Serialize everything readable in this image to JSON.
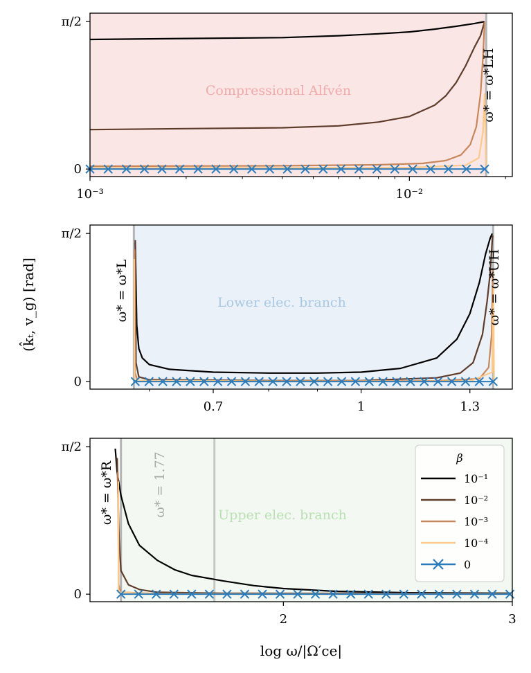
{
  "figure": {
    "ylabel": "(k̂ₜ, v_g) [rad]",
    "xlabel": "log ω/|Ω′ce|"
  },
  "legend": {
    "title": "β",
    "entries": [
      {
        "label": "10⁻¹",
        "color": "#000000",
        "marker": false
      },
      {
        "label": "10⁻²",
        "color": "#5e3c2a",
        "marker": false
      },
      {
        "label": "10⁻³",
        "color": "#c8875a",
        "marker": false
      },
      {
        "label": "10⁻⁴",
        "color": "#fbc98a",
        "marker": false
      },
      {
        "label": "0",
        "color": "#2b7bba",
        "marker": true
      }
    ]
  },
  "chart_data": [
    {
      "type": "line",
      "panel": "top",
      "title": "",
      "xscale": "log",
      "xlim": [
        0.001,
        0.021
      ],
      "ylim": [
        -0.08,
        1.66
      ],
      "xticks": [
        {
          "v": 0.001,
          "label": "10⁻³"
        },
        {
          "v": 0.01,
          "label": "10⁻²"
        }
      ],
      "yticks": [
        {
          "v": 0,
          "label": "0"
        },
        {
          "v": 1.5708,
          "label": "π/2"
        }
      ],
      "region": {
        "label": "Compressional Alfvén",
        "color": "#fbe6e6",
        "label_color": "#f0aaaa",
        "x": [
          0.001,
          0.0174
        ]
      },
      "vlines": [
        {
          "x": 0.0174,
          "label": "ω* = ω*LH",
          "color": "#b4b4b4"
        }
      ],
      "series": [
        {
          "name": "10⁻¹",
          "color": "#000000",
          "points": [
            [
              0.001,
              1.38
            ],
            [
              0.002,
              1.39
            ],
            [
              0.004,
              1.4
            ],
            [
              0.006,
              1.42
            ],
            [
              0.008,
              1.44
            ],
            [
              0.01,
              1.46
            ],
            [
              0.012,
              1.49
            ],
            [
              0.014,
              1.52
            ],
            [
              0.016,
              1.55
            ],
            [
              0.0172,
              1.57
            ]
          ]
        },
        {
          "name": "10⁻²",
          "color": "#5e3c2a",
          "points": [
            [
              0.001,
              0.42
            ],
            [
              0.002,
              0.43
            ],
            [
              0.004,
              0.44
            ],
            [
              0.006,
              0.46
            ],
            [
              0.008,
              0.5
            ],
            [
              0.01,
              0.56
            ],
            [
              0.012,
              0.68
            ],
            [
              0.013,
              0.78
            ],
            [
              0.014,
              0.92
            ],
            [
              0.015,
              1.1
            ],
            [
              0.016,
              1.3
            ],
            [
              0.0167,
              1.42
            ],
            [
              0.0172,
              1.57
            ]
          ]
        },
        {
          "name": "10⁻³",
          "color": "#c8875a",
          "points": [
            [
              0.001,
              0.03
            ],
            [
              0.004,
              0.035
            ],
            [
              0.008,
              0.045
            ],
            [
              0.011,
              0.06
            ],
            [
              0.013,
              0.09
            ],
            [
              0.0145,
              0.15
            ],
            [
              0.0155,
              0.26
            ],
            [
              0.0162,
              0.45
            ],
            [
              0.0167,
              0.8
            ],
            [
              0.017,
              1.2
            ],
            [
              0.0172,
              1.57
            ]
          ]
        },
        {
          "name": "10⁻⁴",
          "color": "#fbc98a",
          "points": [
            [
              0.001,
              0.01
            ],
            [
              0.01,
              0.015
            ],
            [
              0.015,
              0.04
            ],
            [
              0.0165,
              0.12
            ],
            [
              0.017,
              0.4
            ],
            [
              0.0172,
              0.8
            ],
            [
              0.0174,
              0.03
            ]
          ]
        },
        {
          "name": "0",
          "color": "#2b7bba",
          "marker": "x",
          "points": [
            [
              0.001,
              0
            ],
            [
              0.00114,
              0
            ],
            [
              0.0013,
              0
            ],
            [
              0.00148,
              0
            ],
            [
              0.00168,
              0
            ],
            [
              0.00191,
              0
            ],
            [
              0.00218,
              0
            ],
            [
              0.00248,
              0
            ],
            [
              0.00282,
              0
            ],
            [
              0.00321,
              0
            ],
            [
              0.00365,
              0
            ],
            [
              0.00415,
              0
            ],
            [
              0.00472,
              0
            ],
            [
              0.00537,
              0
            ],
            [
              0.00611,
              0
            ],
            [
              0.00695,
              0
            ],
            [
              0.00791,
              0
            ],
            [
              0.009,
              0
            ],
            [
              0.01024,
              0
            ],
            [
              0.01165,
              0
            ],
            [
              0.01325,
              0
            ],
            [
              0.01508,
              0
            ],
            [
              0.0172,
              0
            ]
          ]
        }
      ]
    },
    {
      "type": "line",
      "panel": "middle",
      "title": "",
      "xscale": "log",
      "xlim": [
        0.52,
        1.44
      ],
      "ylim": [
        -0.08,
        1.66
      ],
      "xticks": [
        {
          "v": 0.7,
          "label": "0.7"
        },
        {
          "v": 1.0,
          "label": "1"
        },
        {
          "v": 1.3,
          "label": "1.3"
        }
      ],
      "yticks": [
        {
          "v": 0,
          "label": "0"
        },
        {
          "v": 1.5708,
          "label": "π/2"
        }
      ],
      "region": {
        "label": "Lower elec. branch",
        "color": "#ebf1f9",
        "label_color": "#a9c9e2",
        "x": [
          0.578,
          1.375
        ]
      },
      "vlines": [
        {
          "x": 0.578,
          "label": "ω* = ω*L",
          "color": "#b4b4b4"
        },
        {
          "x": 1.375,
          "label": "ω* = ω*UH",
          "color": "#b4b4b4"
        }
      ],
      "series": [
        {
          "name": "10⁻¹",
          "color": "#000000",
          "points": [
            [
              0.58,
              1.48
            ],
            [
              0.582,
              0.6
            ],
            [
              0.585,
              0.35
            ],
            [
              0.59,
              0.25
            ],
            [
              0.6,
              0.18
            ],
            [
              0.63,
              0.13
            ],
            [
              0.7,
              0.1
            ],
            [
              0.8,
              0.09
            ],
            [
              0.9,
              0.09
            ],
            [
              1.0,
              0.1
            ],
            [
              1.1,
              0.14
            ],
            [
              1.2,
              0.25
            ],
            [
              1.26,
              0.45
            ],
            [
              1.3,
              0.72
            ],
            [
              1.33,
              1.05
            ],
            [
              1.35,
              1.35
            ],
            [
              1.365,
              1.52
            ],
            [
              1.372,
              1.57
            ]
          ]
        },
        {
          "name": "10⁻²",
          "color": "#5e3c2a",
          "points": [
            [
              0.58,
              1.5
            ],
            [
              0.581,
              0.2
            ],
            [
              0.585,
              0.05
            ],
            [
              0.6,
              0.02
            ],
            [
              0.8,
              0.01
            ],
            [
              1.0,
              0.01
            ],
            [
              1.2,
              0.04
            ],
            [
              1.27,
              0.09
            ],
            [
              1.31,
              0.2
            ],
            [
              1.34,
              0.5
            ],
            [
              1.355,
              0.85
            ],
            [
              1.365,
              1.15
            ],
            [
              1.373,
              1.55
            ]
          ]
        },
        {
          "name": "10⁻³",
          "color": "#c8875a",
          "points": [
            [
              0.579,
              1.4
            ],
            [
              0.5795,
              0.1
            ],
            [
              0.583,
              0.01
            ],
            [
              0.8,
              0.005
            ],
            [
              1.2,
              0.008
            ],
            [
              1.33,
              0.03
            ],
            [
              1.36,
              0.15
            ],
            [
              1.37,
              0.5
            ],
            [
              1.374,
              1.2
            ]
          ]
        },
        {
          "name": "10⁻⁴",
          "color": "#fbc98a",
          "points": [
            [
              0.5785,
              1.3
            ],
            [
              0.579,
              0.01
            ],
            [
              0.8,
              0.002
            ],
            [
              1.3,
              0.004
            ],
            [
              1.372,
              0.1
            ],
            [
              1.376,
              1.0
            ],
            [
              1.378,
              0.02
            ]
          ]
        },
        {
          "name": "0",
          "color": "#2b7bba",
          "marker": "x",
          "points": [
            [
              0.58,
              0
            ],
            [
              0.5996,
              0
            ],
            [
              0.6198,
              0
            ],
            [
              0.6407,
              0
            ],
            [
              0.6623,
              0
            ],
            [
              0.6847,
              0
            ],
            [
              0.7078,
              0
            ],
            [
              0.7317,
              0
            ],
            [
              0.7564,
              0
            ],
            [
              0.7819,
              0
            ],
            [
              0.8083,
              0
            ],
            [
              0.8356,
              0
            ],
            [
              0.8638,
              0
            ],
            [
              0.8929,
              0
            ],
            [
              0.923,
              0
            ],
            [
              0.9542,
              0
            ],
            [
              0.9864,
              0
            ],
            [
              1.0197,
              0
            ],
            [
              1.0541,
              0
            ],
            [
              1.0897,
              0
            ],
            [
              1.1264,
              0
            ],
            [
              1.1644,
              0
            ],
            [
              1.2037,
              0
            ],
            [
              1.2443,
              0
            ],
            [
              1.2864,
              0
            ],
            [
              1.3298,
              0
            ],
            [
              1.375,
              0
            ]
          ]
        }
      ]
    },
    {
      "type": "line",
      "panel": "bottom",
      "title": "",
      "xscale": "log",
      "xlim": [
        1.42,
        3.0
      ],
      "ylim": [
        -0.08,
        1.66
      ],
      "xticks": [
        {
          "v": 2,
          "label": "2"
        },
        {
          "v": 3,
          "label": "3"
        }
      ],
      "yticks": [
        {
          "v": 0,
          "label": "0"
        },
        {
          "v": 1.5708,
          "label": "π/2"
        }
      ],
      "region": {
        "label": "Upper elec. branch",
        "color": "#f3f9f2",
        "label_color": "#b9e0b3",
        "x": [
          1.5,
          3.0
        ]
      },
      "vlines": [
        {
          "x": 1.5,
          "label": "ω* = ω*R",
          "color": "#b4b4b4"
        },
        {
          "x": 1.77,
          "label": "ω* = 1.77",
          "color": "#c6c6c6"
        }
      ],
      "series": [
        {
          "name": "10⁻¹",
          "color": "#000000",
          "points": [
            [
              1.485,
              1.55
            ],
            [
              1.49,
              1.3
            ],
            [
              1.5,
              1.05
            ],
            [
              1.52,
              0.75
            ],
            [
              1.55,
              0.52
            ],
            [
              1.6,
              0.36
            ],
            [
              1.65,
              0.26
            ],
            [
              1.7,
              0.2
            ],
            [
              1.8,
              0.14
            ],
            [
              1.9,
              0.09
            ],
            [
              2.0,
              0.06
            ],
            [
              2.2,
              0.03
            ],
            [
              2.5,
              0.015
            ],
            [
              3.0,
              0.01
            ]
          ]
        },
        {
          "name": "10⁻²",
          "color": "#5e3c2a",
          "points": [
            [
              1.49,
              1.45
            ],
            [
              1.495,
              0.6
            ],
            [
              1.5,
              0.25
            ],
            [
              1.52,
              0.1
            ],
            [
              1.55,
              0.05
            ],
            [
              1.6,
              0.02
            ],
            [
              1.8,
              0.01
            ],
            [
              3.0,
              0.005
            ]
          ]
        },
        {
          "name": "10⁻³",
          "color": "#c8875a",
          "points": [
            [
              1.492,
              1.3
            ],
            [
              1.494,
              0.1
            ],
            [
              1.5,
              0.02
            ],
            [
              1.6,
              0.005
            ],
            [
              3.0,
              0.002
            ]
          ]
        },
        {
          "name": "10⁻⁴",
          "color": "#fbc98a",
          "points": [
            [
              1.493,
              1.2
            ],
            [
              1.4935,
              0.02
            ],
            [
              1.6,
              0.001
            ],
            [
              3.0,
              0.001
            ]
          ]
        },
        {
          "name": "0",
          "color": "#2b7bba",
          "marker": "x",
          "points": [
            [
              1.5,
              0
            ],
            [
              1.5477,
              0
            ],
            [
              1.5969,
              0
            ],
            [
              1.6477,
              0
            ],
            [
              1.7001,
              0
            ],
            [
              1.7542,
              0
            ],
            [
              1.81,
              0
            ],
            [
              1.8676,
              0
            ],
            [
              1.927,
              0
            ],
            [
              1.9883,
              0
            ],
            [
              2.0515,
              0
            ],
            [
              2.1168,
              0
            ],
            [
              2.1841,
              0
            ],
            [
              2.2536,
              0
            ],
            [
              2.3253,
              0
            ],
            [
              2.3992,
              0
            ],
            [
              2.4755,
              0
            ],
            [
              2.5543,
              0
            ],
            [
              2.6355,
              0
            ],
            [
              2.7194,
              0
            ],
            [
              2.8059,
              0
            ],
            [
              2.8951,
              0
            ],
            [
              2.9872,
              0
            ]
          ]
        }
      ]
    }
  ]
}
